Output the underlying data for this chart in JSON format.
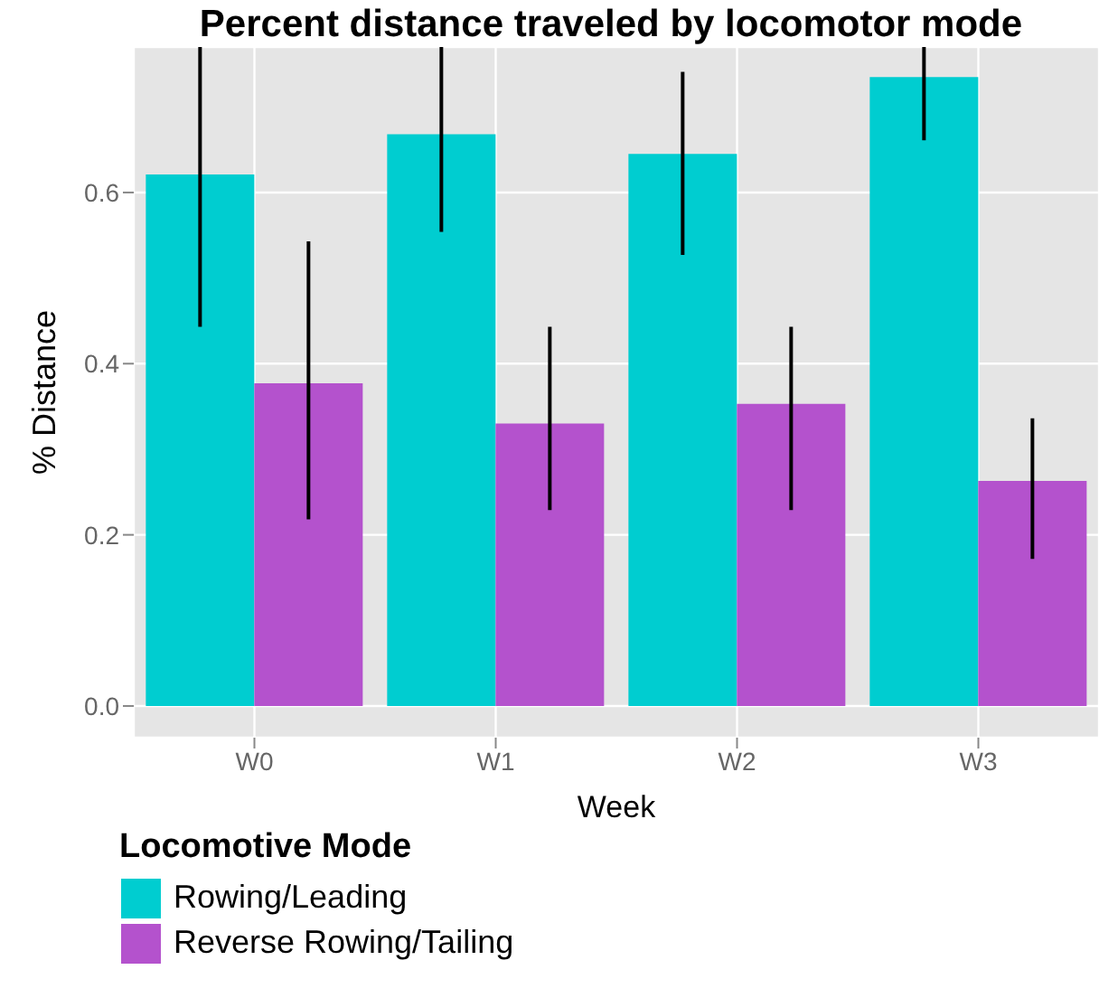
{
  "chart_data": {
    "type": "bar",
    "title": "Percent distance traveled by locomotor mode",
    "xlabel": "Week",
    "ylabel": "% Distance",
    "legend_title": "Locomotive Mode",
    "categories": [
      "W0",
      "W1",
      "W2",
      "W3"
    ],
    "series": [
      {
        "name": "Rowing/Leading",
        "color": "#00cdd0",
        "values": [
          0.621,
          0.668,
          0.645,
          0.735
        ],
        "errors": [
          [
            0.443,
            0.77
          ],
          [
            0.554,
            0.77
          ],
          [
            0.527,
            0.741
          ],
          [
            0.661,
            0.77
          ]
        ]
      },
      {
        "name": "Reverse Rowing/Tailing",
        "color": "#b452cd",
        "values": [
          0.377,
          0.33,
          0.353,
          0.263
        ],
        "errors": [
          [
            0.218,
            0.543
          ],
          [
            0.229,
            0.443
          ],
          [
            0.229,
            0.443
          ],
          [
            0.172,
            0.336
          ]
        ]
      }
    ],
    "ylim": [
      -0.037,
      0.77
    ],
    "yticks": [
      {
        "value": 0,
        "label": "0.0"
      },
      {
        "value": 0.2,
        "label": "0.2"
      },
      {
        "value": 0.4,
        "label": "0.4"
      },
      {
        "value": 0.6,
        "label": "0.6"
      }
    ],
    "grid": true,
    "legend": "bottom"
  }
}
